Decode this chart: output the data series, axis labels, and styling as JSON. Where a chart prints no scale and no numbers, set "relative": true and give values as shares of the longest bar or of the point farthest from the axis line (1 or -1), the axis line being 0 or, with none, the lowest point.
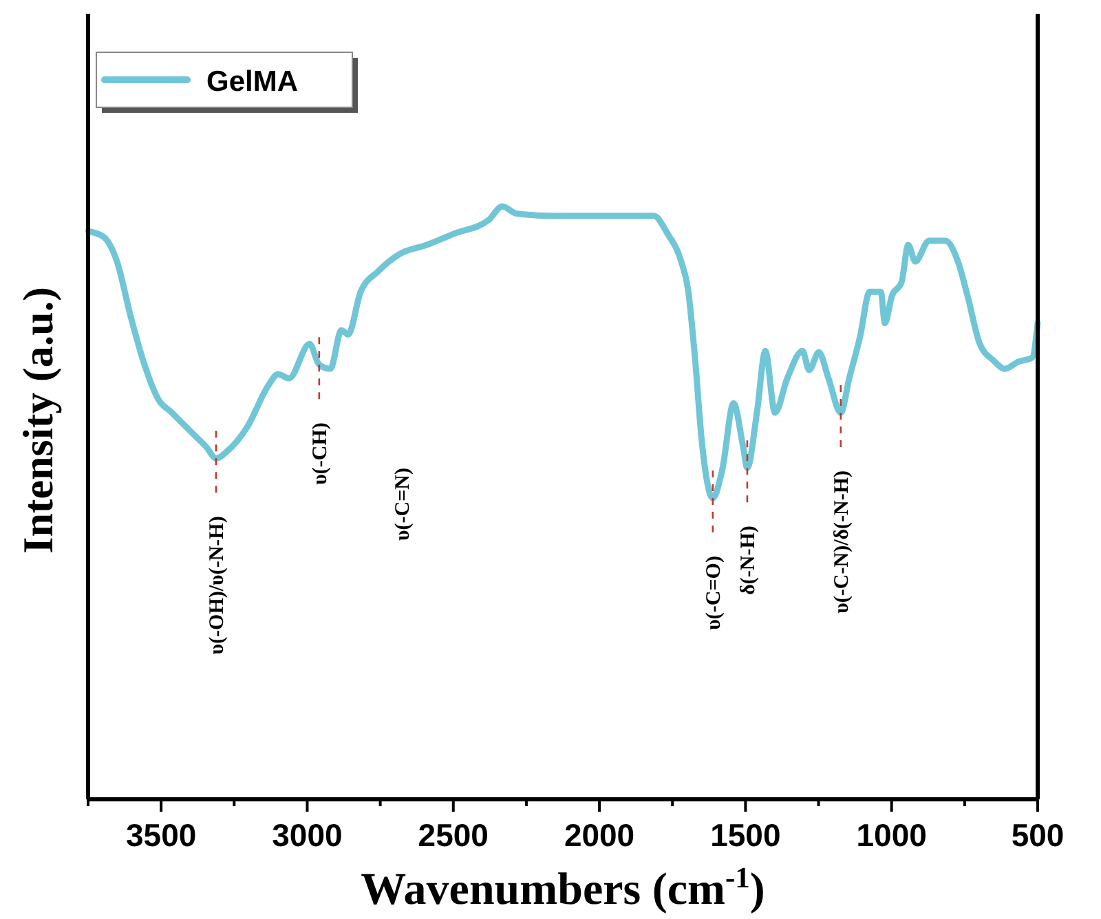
{
  "chart_data": {
    "type": "line",
    "relative": true,
    "xlabel": "Wavenumbers (cm$^{-1}$)",
    "ylabel": "Intensity (a.u.)",
    "xlim": [
      3750,
      500
    ],
    "xticks": [
      {
        "value": 3750,
        "label": null
      },
      3500,
      {
        "value": 3250,
        "label": null
      },
      3000,
      {
        "value": 2750,
        "label": null
      },
      2500,
      {
        "value": 2250,
        "label": null
      },
      2000,
      {
        "value": 1750,
        "label": null
      },
      1500,
      {
        "value": 1250,
        "label": null
      },
      1000,
      {
        "value": 750,
        "label": null
      },
      500
    ],
    "legend": "top left",
    "grid": false,
    "marker": "none",
    "line_style": "solid",
    "tick_labels": "x",
    "series": [
      {
        "name": "GelMA",
        "color": "#70c6d6",
        "x": [
          3750,
          3698,
          3651,
          3604,
          3557,
          3510,
          3463,
          3392,
          3345,
          3312,
          3274,
          3204,
          3133,
          3100,
          3062,
          2992,
          2959,
          2921,
          2883,
          2860,
          2817,
          2756,
          2686,
          2591,
          2497,
          2379,
          2332,
          2285,
          2167,
          1979,
          1814,
          1767,
          1720,
          1697,
          1673,
          1650,
          1612,
          1579,
          1541,
          1508,
          1494,
          1461,
          1432,
          1399,
          1357,
          1305,
          1282,
          1249,
          1216,
          1174,
          1145,
          1108,
          1075,
          1037,
          1023,
          999,
          966,
          943,
          919,
          872,
          816,
          773,
          740,
          698,
          651,
          613,
          566,
          519,
          500
        ],
        "values": [
          0.958,
          0.949,
          0.907,
          0.814,
          0.733,
          0.675,
          0.652,
          0.617,
          0.594,
          0.575,
          0.587,
          0.629,
          0.698,
          0.717,
          0.71,
          0.768,
          0.733,
          0.726,
          0.791,
          0.784,
          0.856,
          0.891,
          0.919,
          0.935,
          0.954,
          0.977,
          1,
          0.988,
          0.984,
          0.984,
          0.984,
          0.954,
          0.907,
          0.861,
          0.745,
          0.606,
          0.508,
          0.557,
          0.668,
          0.594,
          0.559,
          0.652,
          0.756,
          0.652,
          0.71,
          0.756,
          0.724,
          0.754,
          0.71,
          0.652,
          0.71,
          0.78,
          0.856,
          0.856,
          0.803,
          0.849,
          0.872,
          0.935,
          0.907,
          0.942,
          0.942,
          0.907,
          0.849,
          0.768,
          0.74,
          0.726,
          0.738,
          0.745,
          0.803
        ]
      }
    ],
    "annotations": [
      {
        "text": "υ(-OH)/υ(-N-H)",
        "x": 3312,
        "y": 0.575
      },
      {
        "text": "υ(-CH)",
        "x": 2959,
        "y": 0.733
      },
      "υ(-C=N)",
      {
        "text": "υ(-C=O)",
        "x": 1612,
        "y": 0.508
      },
      {
        "text": "δ(-N-H)",
        "x": 1494,
        "y": 0.559
      },
      {
        "text": "υ(-C-N)/δ(-N-H)",
        "x": 1174,
        "y": 0.652
      }
    ]
  }
}
